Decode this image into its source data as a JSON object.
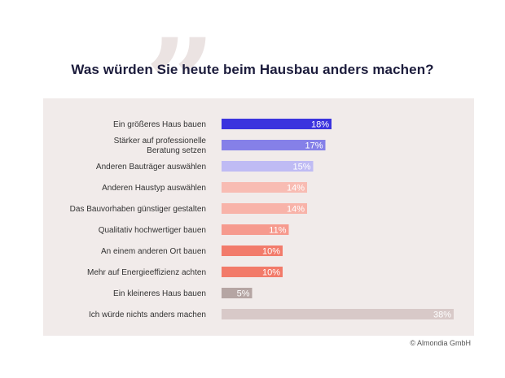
{
  "chart_data": {
    "type": "bar",
    "orientation": "horizontal",
    "title": "Was würden Sie heute beim Hausbau anders machen?",
    "categories": [
      [
        "Ein größeres Haus bauen"
      ],
      [
        "Stärker auf professionelle",
        "Beratung setzen"
      ],
      [
        "Anderen Bauträger auswählen"
      ],
      [
        "Anderen Haustyp auswählen"
      ],
      [
        "Das Bauvorhaben günstiger gestalten"
      ],
      [
        "Qualitativ hochwertiger bauen"
      ],
      [
        "An einem anderen Ort bauen"
      ],
      [
        "Mehr auf Energieeffizienz achten"
      ],
      [
        "Ein kleineres Haus bauen"
      ],
      [
        "Ich würde nichts anders machen"
      ]
    ],
    "values": [
      18,
      17,
      15,
      14,
      14,
      11,
      10,
      10,
      5,
      38
    ],
    "value_labels": [
      "18%",
      "17%",
      "15%",
      "14%",
      "14%",
      "11%",
      "10%",
      "10%",
      "5%",
      "38%"
    ],
    "unit": "%",
    "xlim": [
      0,
      38
    ],
    "colors": [
      "#3b33de",
      "#8580e8",
      "#bfbbf4",
      "#f8bcb3",
      "#f8b3a9",
      "#f69a8e",
      "#f27b6b",
      "#f27a69",
      "#b5a5a3",
      "#d8c9c8"
    ],
    "grid": false,
    "legend": "none"
  },
  "copyright": "© Almondia GmbH"
}
